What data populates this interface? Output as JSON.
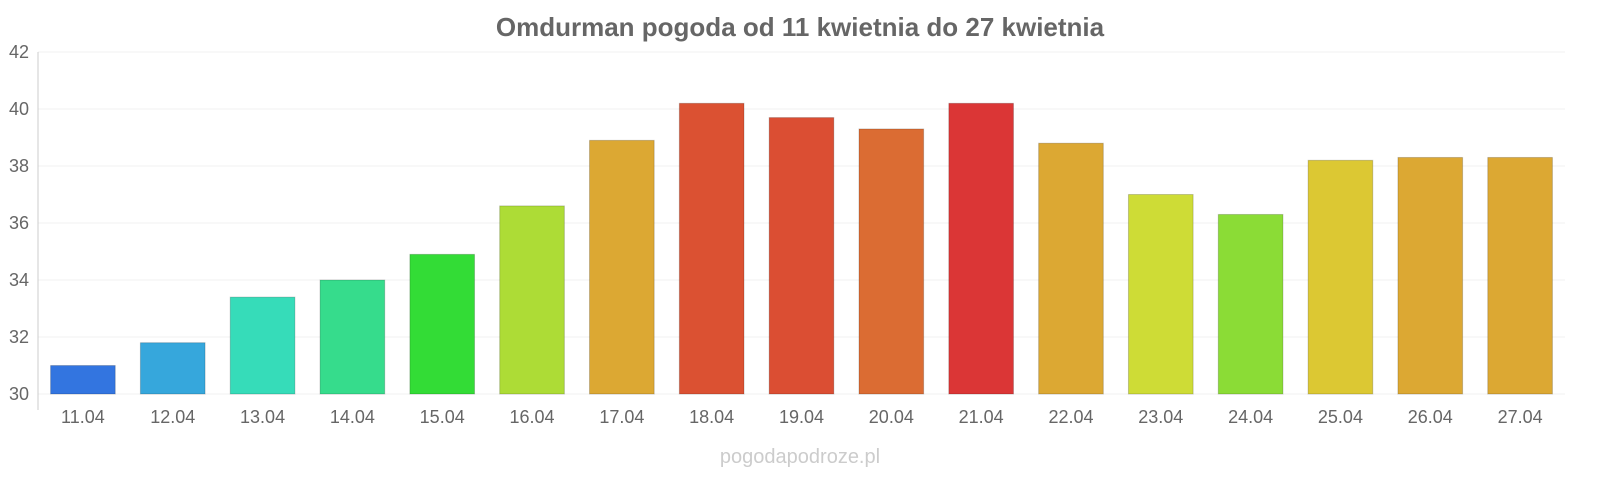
{
  "chart_data": {
    "type": "bar",
    "title": "Omdurman pogoda od 11 kwietnia do 27 kwietnia",
    "categories": [
      "11.04",
      "12.04",
      "13.04",
      "14.04",
      "15.04",
      "16.04",
      "17.04",
      "18.04",
      "19.04",
      "20.04",
      "21.04",
      "22.04",
      "23.04",
      "24.04",
      "25.04",
      "26.04",
      "27.04"
    ],
    "values": [
      31.0,
      31.8,
      33.4,
      34.0,
      34.9,
      36.6,
      38.9,
      40.2,
      39.7,
      39.3,
      40.2,
      38.8,
      37.0,
      36.3,
      38.2,
      38.3,
      38.3
    ],
    "colors": [
      "#3375e0",
      "#36a7dc",
      "#36dcb9",
      "#36dc8c",
      "#33dc36",
      "#addc36",
      "#dca833",
      "#db5132",
      "#db4e33",
      "#db6c33",
      "#db3636",
      "#dca833",
      "#cedc36",
      "#8bdc36",
      "#dcc833",
      "#dca833",
      "#dca833"
    ],
    "ylim": [
      30,
      42
    ],
    "yticks": [
      30,
      32,
      34,
      36,
      38,
      40,
      42
    ],
    "xlabel": "",
    "ylabel": ""
  },
  "watermark": "pogodapodroze.pl"
}
